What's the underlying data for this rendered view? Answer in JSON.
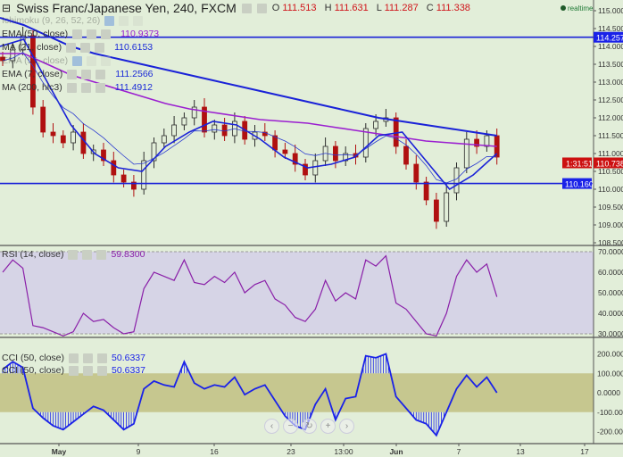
{
  "header": {
    "title": "Swiss Franc/Japanese Yen, 240, FXCM",
    "o_label": "O",
    "o": "111.513",
    "h_label": "H",
    "h": "111.631",
    "l_label": "L",
    "l": "111.287",
    "c_label": "C",
    "c": "111.338"
  },
  "realtime": "realtime",
  "legends": [
    {
      "label": "Ichimoku (9, 26, 52, 26)",
      "value": "",
      "color": "#2a6ae0",
      "faint": true
    },
    {
      "label": "EMA (50, close)",
      "value": "110.9373",
      "color": "#9b1fd0"
    },
    {
      "label": "MA (21, close)",
      "value": "110.6153",
      "color": "#1a2ad8"
    },
    {
      "label": "EMA (55, close)",
      "value": "",
      "color": "#2a6ae0",
      "faint": true
    },
    {
      "label": "EMA (7, close)",
      "value": "111.2566",
      "color": "#1a2ad8"
    },
    {
      "label": "MA (200, hlc3)",
      "value": "111.4912",
      "color": "#1a2ad8"
    }
  ],
  "rsi_legend": {
    "label": "RSI (14, close)",
    "value": "59.8300"
  },
  "cci_legends": [
    {
      "label": "CCI (50, close)",
      "value": "50.6337"
    },
    {
      "label": "CCI (50, close)",
      "value": "50.6337"
    }
  ],
  "nav_buttons": [
    "‹",
    "−",
    "↻",
    "+",
    "›"
  ],
  "colors": {
    "background": "#e2eed9",
    "bull": "#2c2c2c",
    "bear": "#b01010",
    "ma200": "#1a22d8",
    "ema_purple": "#9b1fd0",
    "rsi": "#8a1fa8",
    "cci": "#1a22e8",
    "rsi_band": "#d6d4e6",
    "cci_band": "#c6c78f",
    "hline": "#1a22d8"
  },
  "chart_data": [
    {
      "type": "candlestick",
      "title": "Swiss Franc/Japanese Yen, 240, FXCM",
      "ylim": [
        108.5,
        115.0
      ],
      "y_ticks": [
        "115.000",
        "114.500",
        "114.000",
        "113.500",
        "113.000",
        "112.500",
        "112.000",
        "111.500",
        "111.000",
        "110.500",
        "110.000",
        "109.500",
        "109.000",
        "108.500"
      ],
      "x_ticks": [
        "May",
        "9",
        "16",
        "23",
        "13:00",
        "Jun",
        "7",
        "13",
        "17"
      ],
      "closes": [
        113.6,
        113.9,
        114.3,
        112.3,
        111.6,
        111.5,
        111.3,
        111.6,
        111.0,
        111.1,
        110.8,
        110.4,
        110.2,
        110.0,
        110.8,
        111.3,
        111.5,
        111.8,
        112.0,
        112.3,
        111.6,
        111.8,
        111.5,
        111.9,
        111.4,
        111.6,
        111.5,
        111.1,
        111.0,
        110.7,
        110.4,
        110.8,
        111.2,
        110.8,
        111.0,
        110.9,
        111.7,
        111.9,
        112.0,
        111.2,
        110.7,
        110.2,
        109.7,
        109.1,
        109.9,
        110.6,
        111.4,
        111.2,
        111.5,
        110.9
      ],
      "series": [
        {
          "name": "MA (200, hlc3)",
          "values": [
            114.8,
            114.6,
            114.3,
            114.0,
            113.8,
            113.65,
            113.5,
            113.35,
            113.2,
            113.05,
            112.9,
            112.75,
            112.6,
            112.45,
            112.3,
            112.15,
            112.0,
            111.9,
            111.8,
            111.7,
            111.6,
            111.5
          ]
        },
        {
          "name": "EMA (50, close)",
          "values": [
            113.8,
            113.8,
            113.5,
            113.2,
            113.0,
            112.8,
            112.6,
            112.4,
            112.25,
            112.15,
            112.05,
            111.95,
            111.9,
            111.85,
            111.75,
            111.65,
            111.55,
            111.45,
            111.35,
            111.3,
            111.25,
            111.2
          ]
        },
        {
          "name": "MA (21, close)",
          "values": [
            114.0,
            114.2,
            113.0,
            111.8,
            111.0,
            110.6,
            110.5,
            111.2,
            111.6,
            111.9,
            111.8,
            111.4,
            110.9,
            110.6,
            110.7,
            110.9,
            111.5,
            111.6,
            110.8,
            110.0,
            110.4,
            111.0
          ]
        }
      ],
      "hlines": [
        "114.257",
        "110.160"
      ],
      "price_labels": {
        "last": "110.738",
        "countdown": "1:31:51"
      }
    },
    {
      "type": "line",
      "name": "RSI (14, close)",
      "ylim": [
        30,
        70
      ],
      "y_ticks": [
        "70.0000",
        "60.0000",
        "50.0000",
        "40.0000",
        "30.0000"
      ],
      "values": [
        60,
        66,
        62,
        34,
        33,
        31,
        29,
        31,
        40,
        36,
        37,
        33,
        30,
        31,
        52,
        60,
        58,
        56,
        66,
        55,
        54,
        58,
        55,
        60,
        50,
        54,
        56,
        47,
        44,
        38,
        36,
        42,
        56,
        46,
        50,
        47,
        66,
        63,
        68,
        45,
        42,
        36,
        30,
        29,
        40,
        58,
        66,
        60,
        64,
        48
      ]
    },
    {
      "type": "area",
      "name": "CCI (50, close)",
      "ylim": [
        -200,
        200
      ],
      "y_ticks": [
        "200.0000",
        "100.0000",
        "0.0000",
        "-100.0000",
        "-200.0000"
      ],
      "values": [
        120,
        160,
        130,
        -80,
        -130,
        -170,
        -190,
        -150,
        -110,
        -70,
        -90,
        -140,
        -190,
        -160,
        20,
        60,
        40,
        30,
        160,
        50,
        20,
        40,
        30,
        80,
        -10,
        20,
        40,
        -40,
        -120,
        -170,
        -190,
        -60,
        20,
        -140,
        -30,
        -20,
        190,
        180,
        200,
        -20,
        -80,
        -140,
        -160,
        -220,
        -100,
        20,
        90,
        30,
        80,
        0
      ]
    }
  ]
}
